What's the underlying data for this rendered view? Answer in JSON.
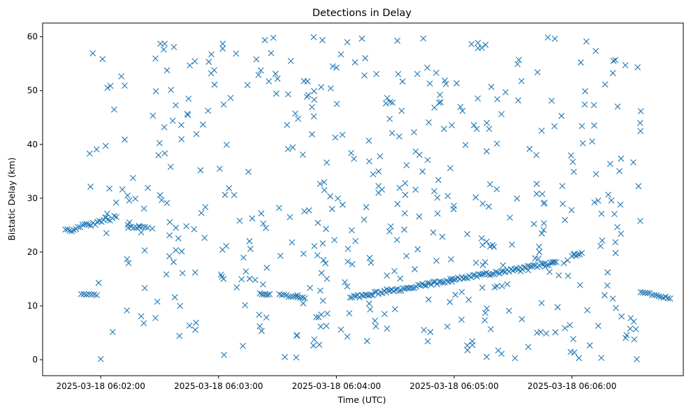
{
  "chart_data": {
    "type": "scatter",
    "title": "Detections in Delay",
    "xlabel": "Time (UTC)",
    "ylabel": "Bistatic Delay (km)",
    "x_axis_kind": "time",
    "x_start": "2025-03-18 06:01:31",
    "x_end": "2025-03-18 06:06:45",
    "xlim": [
      -29.6,
      296.7
    ],
    "ylim": [
      -2.97,
      62.55
    ],
    "grid": false,
    "marker": "x",
    "color": "#1f77b4",
    "x_ticks": [
      {
        "t": 0,
        "label": "2025-03-18 06:02:00"
      },
      {
        "t": 60,
        "label": "2025-03-18 06:03:00"
      },
      {
        "t": 120,
        "label": "2025-03-18 06:04:00"
      },
      {
        "t": 180,
        "label": "2025-03-18 06:05:00"
      },
      {
        "t": 240,
        "label": "2025-03-18 06:06:00"
      }
    ],
    "y_ticks": [
      0,
      10,
      20,
      30,
      40,
      50,
      60
    ],
    "tracks": [
      {
        "t_start": -18,
        "y_start": 23.8,
        "t_end": 8,
        "y_end": 26.6,
        "count": 25,
        "jitter": 0.4
      },
      {
        "t_start": 14,
        "y_start": 24.6,
        "t_end": 24,
        "y_end": 24.6,
        "count": 8,
        "jitter": 0.1
      },
      {
        "t_start": -10,
        "y_start": 12.2,
        "t_end": -2,
        "y_end": 12.0,
        "count": 7,
        "jitter": 0.1
      },
      {
        "t_start": 81,
        "y_start": 12.3,
        "t_end": 86,
        "y_end": 12.1,
        "count": 6,
        "jitter": 0.1
      },
      {
        "t_start": 91,
        "y_start": 12.1,
        "t_end": 104,
        "y_end": 11.4,
        "count": 12,
        "jitter": 0.2
      },
      {
        "t_start": 127,
        "y_start": 11.5,
        "t_end": 232,
        "y_end": 18.1,
        "count": 110,
        "jitter": 0.3
      },
      {
        "t_start": 240,
        "y_start": 19.2,
        "t_end": 245,
        "y_end": 19.8,
        "count": 6,
        "jitter": 0.2
      },
      {
        "t_start": 275,
        "y_start": 12.6,
        "t_end": 290,
        "y_end": 11.4,
        "count": 14,
        "jitter": 0.2
      }
    ],
    "scattered_count": 500,
    "y_range_scattered": [
      0,
      60
    ]
  }
}
